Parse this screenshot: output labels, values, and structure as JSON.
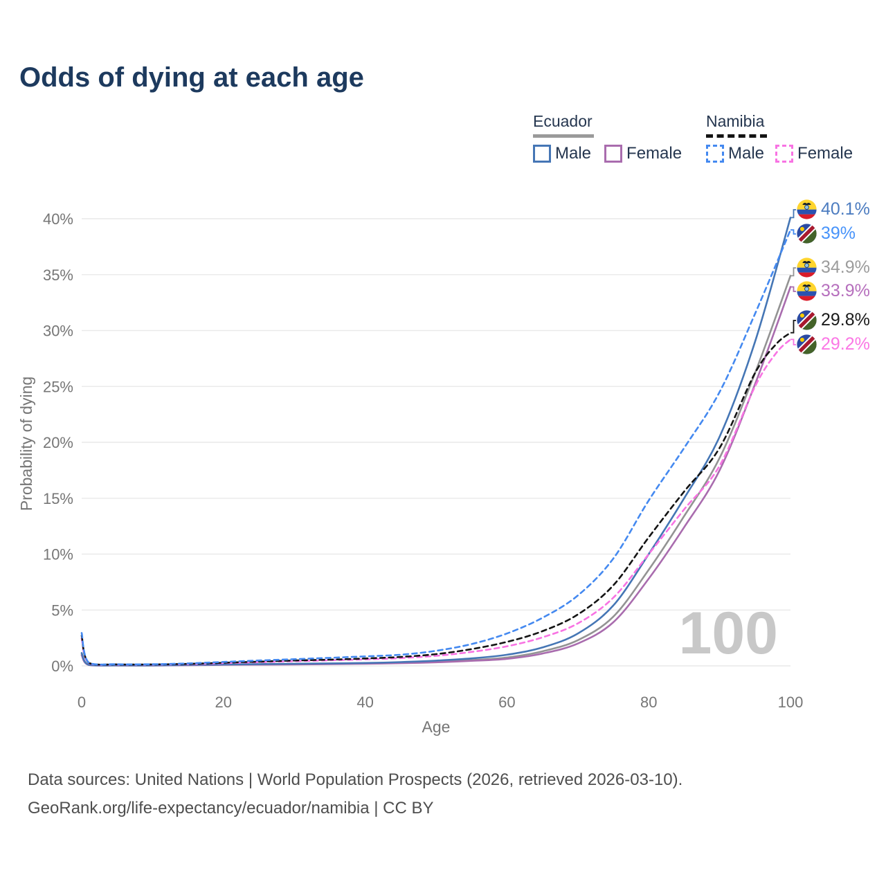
{
  "title": "Odds of dying at each age",
  "legend": {
    "groups": [
      {
        "country": "Ecuador",
        "series_key": "ecuador-all",
        "items": [
          {
            "label": "Male",
            "series_key": "ecuador-male"
          },
          {
            "label": "Female",
            "series_key": "ecuador-female"
          }
        ]
      },
      {
        "country": "Namibia",
        "series_key": "namibia-all",
        "items": [
          {
            "label": "Male",
            "series_key": "namibia-male"
          },
          {
            "label": "Female",
            "series_key": "namibia-female"
          }
        ]
      }
    ]
  },
  "footer": {
    "line1": "Data sources: United Nations | World Population Prospects (2026, retrieved 2026-03-10).",
    "line2": "GeoRank.org/life-expectancy/ecuador/namibia | CC BY"
  },
  "chart_data": {
    "type": "line",
    "title": "Odds of dying at each age",
    "xlabel": "Age",
    "ylabel": "Probability of dying",
    "xlim": [
      0,
      100
    ],
    "ylim": [
      0,
      40
    ],
    "grid": "horizontal",
    "legend_position": "top-right",
    "watermark": "100",
    "x_ticks": [
      {
        "value": 0,
        "label": "0"
      },
      {
        "value": 20,
        "label": "20"
      },
      {
        "value": 40,
        "label": "40"
      },
      {
        "value": 60,
        "label": "60"
      },
      {
        "value": 80,
        "label": "80"
      },
      {
        "value": 100,
        "label": "100"
      }
    ],
    "y_ticks": [
      {
        "value": 0,
        "label": "0%"
      },
      {
        "value": 5,
        "label": "5%"
      },
      {
        "value": 10,
        "label": "10%"
      },
      {
        "value": 15,
        "label": "15%"
      },
      {
        "value": 20,
        "label": "20%"
      },
      {
        "value": 25,
        "label": "25%"
      },
      {
        "value": 30,
        "label": "30%"
      },
      {
        "value": 35,
        "label": "35%"
      },
      {
        "value": 40,
        "label": "40%"
      }
    ],
    "series": [
      {
        "key": "ecuador-all",
        "name": "Ecuador (both sexes)",
        "country": "Ecuador",
        "sex": "All",
        "color": "#939393",
        "label_color": "#9c9c9c",
        "dash": "solid",
        "flag": "ecuador",
        "end": 34.9,
        "end_label": "34.9%",
        "points": [
          [
            0,
            1.05
          ],
          [
            1,
            0.09
          ],
          [
            5,
            0.04
          ],
          [
            10,
            0.04
          ],
          [
            15,
            0.07
          ],
          [
            20,
            0.11
          ],
          [
            25,
            0.13
          ],
          [
            30,
            0.16
          ],
          [
            35,
            0.18
          ],
          [
            40,
            0.21
          ],
          [
            45,
            0.27
          ],
          [
            50,
            0.37
          ],
          [
            55,
            0.52
          ],
          [
            60,
            0.75
          ],
          [
            65,
            1.3
          ],
          [
            70,
            2.3
          ],
          [
            75,
            4.4
          ],
          [
            80,
            8.6
          ],
          [
            85,
            13.4
          ],
          [
            90,
            18.6
          ],
          [
            95,
            26.2
          ],
          [
            100,
            34.9
          ]
        ]
      },
      {
        "key": "ecuador-female",
        "name": "Ecuador Female",
        "country": "Ecuador",
        "sex": "Female",
        "color": "#a96cae",
        "label_color": "#b66fbd",
        "dash": "solid",
        "flag": "ecuador",
        "end": 33.9,
        "end_label": "33.9%",
        "points": [
          [
            0,
            0.95
          ],
          [
            1,
            0.08
          ],
          [
            5,
            0.04
          ],
          [
            10,
            0.04
          ],
          [
            15,
            0.06
          ],
          [
            20,
            0.09
          ],
          [
            25,
            0.11
          ],
          [
            30,
            0.13
          ],
          [
            35,
            0.16
          ],
          [
            40,
            0.19
          ],
          [
            45,
            0.24
          ],
          [
            50,
            0.32
          ],
          [
            55,
            0.45
          ],
          [
            60,
            0.63
          ],
          [
            65,
            1.1
          ],
          [
            70,
            2.0
          ],
          [
            75,
            3.9
          ],
          [
            80,
            7.8
          ],
          [
            85,
            12.4
          ],
          [
            90,
            17.5
          ],
          [
            95,
            25.2
          ],
          [
            100,
            33.9
          ]
        ]
      },
      {
        "key": "ecuador-male",
        "name": "Ecuador Male",
        "country": "Ecuador",
        "sex": "Male",
        "color": "#4576b5",
        "label_color": "#4c7cc0",
        "dash": "solid",
        "flag": "ecuador",
        "end": 40.1,
        "end_label": "40.1%",
        "points": [
          [
            0,
            1.15
          ],
          [
            1,
            0.1
          ],
          [
            5,
            0.05
          ],
          [
            10,
            0.05
          ],
          [
            15,
            0.09
          ],
          [
            20,
            0.13
          ],
          [
            25,
            0.16
          ],
          [
            30,
            0.19
          ],
          [
            35,
            0.22
          ],
          [
            40,
            0.26
          ],
          [
            45,
            0.34
          ],
          [
            50,
            0.47
          ],
          [
            55,
            0.67
          ],
          [
            60,
            1.0
          ],
          [
            65,
            1.65
          ],
          [
            70,
            2.9
          ],
          [
            75,
            5.4
          ],
          [
            80,
            10.0
          ],
          [
            85,
            15.0
          ],
          [
            90,
            20.5
          ],
          [
            95,
            29.0
          ],
          [
            100,
            40.1
          ]
        ]
      },
      {
        "key": "namibia-female",
        "name": "Namibia Female",
        "country": "Namibia",
        "sex": "Female",
        "color": "#f873e3",
        "label_color": "#fb77e5",
        "dash": "dashed",
        "flag": "namibia",
        "end": 29.2,
        "end_label": "29.2%",
        "points": [
          [
            0,
            2.45
          ],
          [
            1,
            0.25
          ],
          [
            5,
            0.12
          ],
          [
            10,
            0.12
          ],
          [
            15,
            0.16
          ],
          [
            20,
            0.24
          ],
          [
            25,
            0.33
          ],
          [
            30,
            0.42
          ],
          [
            35,
            0.5
          ],
          [
            40,
            0.58
          ],
          [
            45,
            0.7
          ],
          [
            50,
            0.9
          ],
          [
            55,
            1.25
          ],
          [
            60,
            1.75
          ],
          [
            65,
            2.55
          ],
          [
            70,
            3.8
          ],
          [
            75,
            6.1
          ],
          [
            80,
            10.0
          ],
          [
            85,
            14.0
          ],
          [
            90,
            17.9
          ],
          [
            95,
            25.0
          ],
          [
            98,
            28.0
          ],
          [
            100,
            29.2
          ]
        ]
      },
      {
        "key": "namibia-all",
        "name": "Namibia (both sexes)",
        "country": "Namibia",
        "sex": "All",
        "color": "#141414",
        "label_color": "#1a1a1a",
        "dash": "dashed",
        "flag": "namibia",
        "end": 29.8,
        "end_label": "29.8%",
        "points": [
          [
            0,
            2.7
          ],
          [
            1,
            0.28
          ],
          [
            5,
            0.13
          ],
          [
            10,
            0.13
          ],
          [
            15,
            0.18
          ],
          [
            20,
            0.28
          ],
          [
            25,
            0.38
          ],
          [
            30,
            0.48
          ],
          [
            35,
            0.56
          ],
          [
            40,
            0.66
          ],
          [
            45,
            0.8
          ],
          [
            50,
            1.05
          ],
          [
            55,
            1.5
          ],
          [
            60,
            2.15
          ],
          [
            65,
            3.1
          ],
          [
            70,
            4.6
          ],
          [
            75,
            7.2
          ],
          [
            80,
            11.5
          ],
          [
            85,
            15.6
          ],
          [
            90,
            19.5
          ],
          [
            95,
            26.2
          ],
          [
            98,
            28.8
          ],
          [
            100,
            29.8
          ]
        ]
      },
      {
        "key": "namibia-male",
        "name": "Namibia Male",
        "country": "Namibia",
        "sex": "Male",
        "color": "#4489f0",
        "label_color": "#4793fa",
        "dash": "dashed",
        "flag": "namibia",
        "end": 39,
        "end_label": "39%",
        "points": [
          [
            0,
            2.95
          ],
          [
            1,
            0.3
          ],
          [
            5,
            0.15
          ],
          [
            10,
            0.15
          ],
          [
            15,
            0.22
          ],
          [
            20,
            0.35
          ],
          [
            25,
            0.48
          ],
          [
            30,
            0.6
          ],
          [
            35,
            0.72
          ],
          [
            40,
            0.85
          ],
          [
            45,
            1.0
          ],
          [
            50,
            1.35
          ],
          [
            55,
            1.95
          ],
          [
            60,
            2.9
          ],
          [
            65,
            4.3
          ],
          [
            70,
            6.3
          ],
          [
            75,
            9.6
          ],
          [
            80,
            14.8
          ],
          [
            85,
            19.5
          ],
          [
            90,
            24.5
          ],
          [
            95,
            31.5
          ],
          [
            100,
            39
          ]
        ]
      }
    ]
  }
}
